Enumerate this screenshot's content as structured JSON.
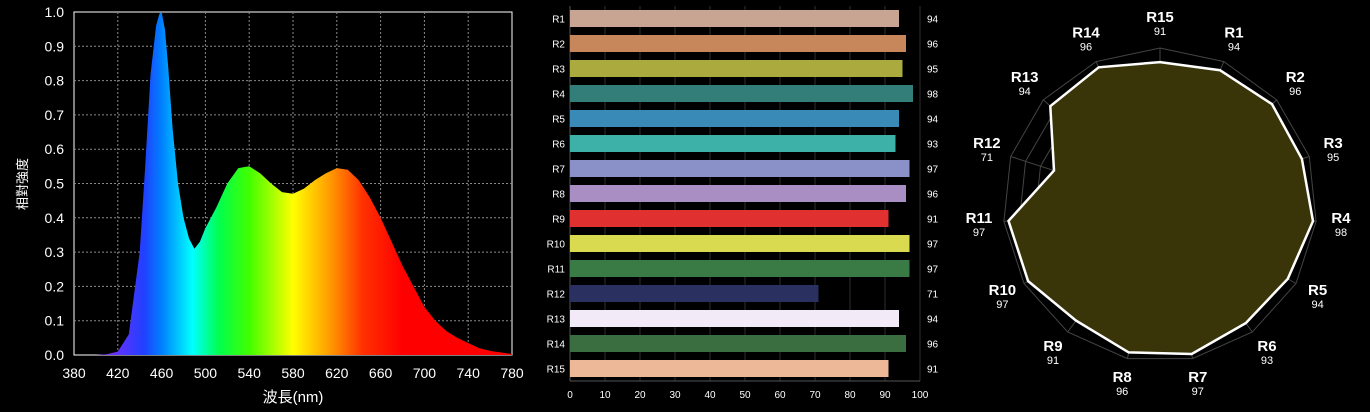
{
  "chart_data": [
    {
      "type": "area",
      "title": "",
      "xlabel": "波長(nm)",
      "ylabel": "相對強度",
      "xlim": [
        380,
        780
      ],
      "ylim": [
        0,
        1.0
      ],
      "x_ticks": [
        "380",
        "420",
        "460",
        "500",
        "540",
        "580",
        "620",
        "660",
        "700",
        "740",
        "780"
      ],
      "y_ticks": [
        "0.0",
        "0.1",
        "0.2",
        "0.3",
        "0.4",
        "0.5",
        "0.6",
        "0.7",
        "0.8",
        "0.9",
        "1.0"
      ],
      "grid": true,
      "fill": "visible-spectrum-gradient",
      "x": [
        380,
        400,
        410,
        420,
        430,
        440,
        445,
        450,
        455,
        458,
        460,
        463,
        466,
        470,
        475,
        480,
        485,
        490,
        495,
        500,
        505,
        510,
        520,
        530,
        540,
        550,
        560,
        570,
        580,
        590,
        600,
        610,
        620,
        630,
        640,
        650,
        660,
        670,
        680,
        690,
        700,
        710,
        720,
        730,
        740,
        750,
        760,
        780
      ],
      "y": [
        0.0,
        0.0,
        0.002,
        0.01,
        0.06,
        0.3,
        0.55,
        0.82,
        0.96,
        0.995,
        1.0,
        0.95,
        0.84,
        0.66,
        0.5,
        0.4,
        0.34,
        0.31,
        0.33,
        0.37,
        0.4,
        0.43,
        0.5,
        0.545,
        0.55,
        0.53,
        0.5,
        0.475,
        0.47,
        0.485,
        0.51,
        0.53,
        0.545,
        0.54,
        0.51,
        0.46,
        0.4,
        0.33,
        0.26,
        0.2,
        0.14,
        0.1,
        0.07,
        0.05,
        0.035,
        0.02,
        0.012,
        0.003
      ]
    },
    {
      "type": "bar",
      "orientation": "horizontal",
      "categories": [
        "R1",
        "R2",
        "R3",
        "R4",
        "R5",
        "R6",
        "R7",
        "R8",
        "R9",
        "R10",
        "R11",
        "R12",
        "R13",
        "R14",
        "R15"
      ],
      "values": [
        94,
        96,
        95,
        98,
        94,
        93,
        97,
        96,
        91,
        97,
        97,
        71,
        94,
        96,
        91
      ],
      "colors": [
        "#c8a593",
        "#c8875a",
        "#aaaa3e",
        "#347e79",
        "#3a8ab8",
        "#3db0a8",
        "#8a90c8",
        "#a98ec4",
        "#e03030",
        "#dada50",
        "#3a7a44",
        "#2a3060",
        "#f2eaf6",
        "#3a6e40",
        "#ecb898"
      ],
      "xlim": [
        0,
        100
      ],
      "x_ticks": [
        "0",
        "10",
        "20",
        "30",
        "40",
        "50",
        "60",
        "70",
        "80",
        "90",
        "100"
      ]
    },
    {
      "type": "radar",
      "categories": [
        "R15",
        "R1",
        "R2",
        "R3",
        "R4",
        "R5",
        "R6",
        "R7",
        "R8",
        "R9",
        "R10",
        "R11",
        "R12",
        "R13",
        "R14"
      ],
      "values": [
        91,
        94,
        96,
        95,
        98,
        94,
        93,
        97,
        96,
        91,
        97,
        97,
        71,
        94,
        96
      ],
      "rlim": [
        0,
        100
      ],
      "fill_color": "#3a3508",
      "line_color": "#ffffff"
    }
  ]
}
